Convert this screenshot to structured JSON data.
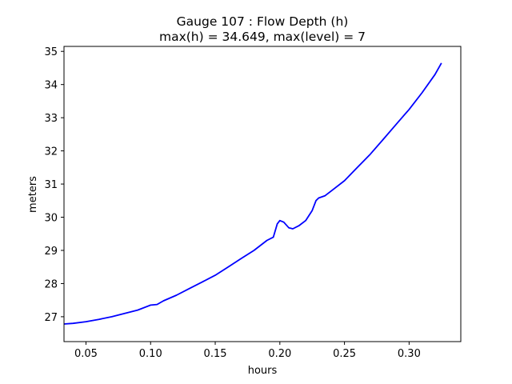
{
  "chart_data": {
    "type": "line",
    "title": "Gauge 107 : Flow Depth (h)",
    "subtitle": "max(h) =  34.649,    max(level) = 7",
    "xlabel": "hours",
    "ylabel": "meters",
    "xlim": [
      0.033,
      0.34
    ],
    "ylim": [
      26.25,
      35.15
    ],
    "xticks": [
      0.05,
      0.1,
      0.15,
      0.2,
      0.25,
      0.3
    ],
    "xtick_labels": [
      "0.05",
      "0.10",
      "0.15",
      "0.20",
      "0.25",
      "0.30"
    ],
    "yticks": [
      27,
      28,
      29,
      30,
      31,
      32,
      33,
      34,
      35
    ],
    "ytick_labels": [
      "27",
      "28",
      "29",
      "30",
      "31",
      "32",
      "33",
      "34",
      "35"
    ],
    "grid": false,
    "legend": "none",
    "series": [
      {
        "color": "#0000ff",
        "x": [
          0.033,
          0.04,
          0.05,
          0.06,
          0.07,
          0.08,
          0.09,
          0.1,
          0.105,
          0.11,
          0.12,
          0.13,
          0.14,
          0.15,
          0.16,
          0.17,
          0.18,
          0.19,
          0.195,
          0.198,
          0.2,
          0.203,
          0.207,
          0.21,
          0.215,
          0.22,
          0.225,
          0.228,
          0.23,
          0.235,
          0.24,
          0.25,
          0.26,
          0.27,
          0.28,
          0.29,
          0.3,
          0.31,
          0.32,
          0.325
        ],
        "y": [
          26.78,
          26.8,
          26.85,
          26.92,
          27.0,
          27.1,
          27.2,
          27.35,
          27.37,
          27.48,
          27.65,
          27.85,
          28.05,
          28.25,
          28.5,
          28.75,
          29.0,
          29.3,
          29.4,
          29.8,
          29.9,
          29.85,
          29.68,
          29.65,
          29.75,
          29.9,
          30.2,
          30.5,
          30.58,
          30.65,
          30.8,
          31.1,
          31.5,
          31.9,
          32.35,
          32.8,
          33.25,
          33.75,
          34.3,
          34.649
        ]
      }
    ]
  }
}
